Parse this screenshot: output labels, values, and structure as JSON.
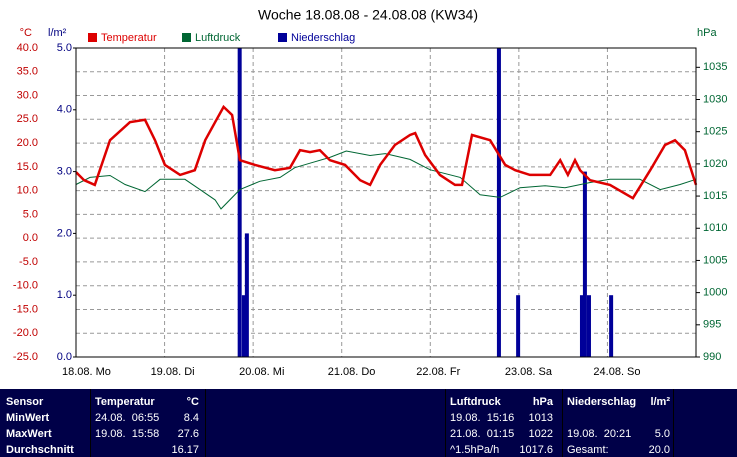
{
  "chart_data": {
    "type": "line",
    "title": "Woche 18.08.08 - 24.08.08 (KW34)",
    "y_unit": "°C",
    "y3_unit": "l/m²",
    "y2_unit": "hPa",
    "xlim": [
      0,
      168
    ],
    "xticks": [
      {
        "value": 0,
        "label": "18.08.  Mo"
      },
      {
        "value": 24,
        "label": "19.08.  Di"
      },
      {
        "value": 48,
        "label": "20.08.  Mi"
      },
      {
        "value": 72,
        "label": "21.08.  Do"
      },
      {
        "value": 96,
        "label": "22.08.  Fr"
      },
      {
        "value": 120,
        "label": "23.08.  Sa"
      },
      {
        "value": 144,
        "label": "24.08.  So"
      }
    ],
    "ylim": [
      -25,
      40
    ],
    "yticks": [
      {
        "value": 40,
        "label": "40.0"
      },
      {
        "value": 35,
        "label": "35.0"
      },
      {
        "value": 30,
        "label": "30.0"
      },
      {
        "value": 25,
        "label": "25.0"
      },
      {
        "value": 20,
        "label": "20.0"
      },
      {
        "value": 15,
        "label": "15.0"
      },
      {
        "value": 10,
        "label": "10.0"
      },
      {
        "value": 5,
        "label": "5.0"
      },
      {
        "value": 0,
        "label": "0.0"
      },
      {
        "value": -5,
        "label": "-5.0"
      },
      {
        "value": -10,
        "label": "-10.0"
      },
      {
        "value": -15,
        "label": "-15.0"
      },
      {
        "value": -20,
        "label": "-20.0"
      },
      {
        "value": -25,
        "label": "-25.0"
      }
    ],
    "y2lim": [
      990,
      1038
    ],
    "y2ticks": [
      990,
      995,
      1000,
      1005,
      1010,
      1015,
      1020,
      1025,
      1030,
      1035
    ],
    "y3lim": [
      0,
      5
    ],
    "y3ticks": [
      {
        "value": 0,
        "label": "0.0"
      },
      {
        "value": 1,
        "label": "1.0"
      },
      {
        "value": 2,
        "label": "2.0"
      },
      {
        "value": 3,
        "label": "3.0"
      },
      {
        "value": 4,
        "label": "4.0"
      },
      {
        "value": 5,
        "label": "5.0"
      }
    ],
    "grid": true,
    "series": [
      {
        "name": "Temperatur",
        "color": "#dd0000",
        "axis": "y",
        "type": "line",
        "x": [
          0,
          2.2,
          5.1,
          9.2,
          14.6,
          18.7,
          21.4,
          24.1,
          28.2,
          32.2,
          35,
          37.7,
          40,
          42.3,
          44.4,
          48.5,
          53.9,
          58,
          60.7,
          63.4,
          66.1,
          68.8,
          72.9,
          77,
          79.7,
          82.4,
          86.4,
          90.5,
          91.9,
          94.6,
          98.6,
          102.7,
          104.6,
          107.3,
          112.2,
          116.3,
          119,
          123,
          128.5,
          131.2,
          133.3,
          135.2,
          136.6,
          139.3,
          144.7,
          150.9,
          155.6,
          159.6,
          162.3,
          165,
          168
        ],
        "values": [
          13.9,
          12.2,
          11.2,
          20.6,
          24.4,
          24.9,
          20.6,
          15.4,
          13.3,
          14.3,
          20.6,
          24.4,
          27.6,
          25.9,
          16.4,
          15.4,
          14.3,
          14.8,
          18.5,
          18.1,
          18.5,
          16.4,
          15.4,
          12.2,
          11.2,
          15.4,
          19.6,
          21.7,
          22.1,
          17.5,
          13.3,
          11.2,
          11.2,
          21.7,
          20.6,
          15.4,
          14.3,
          13.3,
          13.3,
          16.4,
          13.3,
          16.4,
          14.3,
          12.2,
          11.2,
          8.4,
          14.3,
          19.6,
          20.6,
          18.5,
          11.2
        ]
      },
      {
        "name": "Luftdruck",
        "color": "#006633",
        "axis": "y2",
        "type": "line",
        "x": [
          0,
          3.8,
          9.2,
          13.3,
          18.7,
          22.8,
          29.5,
          33.6,
          37.7,
          39.3,
          44.4,
          49.8,
          55.3,
          59.3,
          63.4,
          68.8,
          73.25,
          79.7,
          83.8,
          90.5,
          95.9,
          104.1,
          109.5,
          114.9,
          120.3,
          127.1,
          132.5,
          139.3,
          144.7,
          152.8,
          158.3,
          163.7,
          168
        ],
        "values": [
          1016.8,
          1017.9,
          1018.2,
          1016.8,
          1015.7,
          1017.6,
          1017.6,
          1016,
          1014.4,
          1013,
          1016,
          1017.3,
          1017.9,
          1019.4,
          1020.1,
          1021,
          1022,
          1021.3,
          1021.6,
          1020.7,
          1019.1,
          1017.9,
          1015.2,
          1014.8,
          1016.3,
          1016.6,
          1016.3,
          1017.1,
          1017.6,
          1017.6,
          1016,
          1016.8,
          1017.6
        ]
      },
      {
        "name": "Niederschlag",
        "color": "#000099",
        "axis": "y3",
        "type": "bar",
        "x": [
          44.35,
          45.5,
          46.3,
          114.6,
          119.8,
          137.1,
          137.9,
          139,
          145
        ],
        "values": [
          5.0,
          1.0,
          2.0,
          5.0,
          1.0,
          1.0,
          3.0,
          1.0,
          1.0
        ]
      }
    ]
  },
  "table": {
    "header": {
      "sensor": "Sensor",
      "temp": "Temperatur",
      "temp_unit": "°C",
      "pressure": "Luftdruck",
      "pressure_unit": "hPa",
      "rain": "Niederschlag",
      "rain_unit": "l/m²"
    },
    "rows": [
      {
        "label": "MinWert",
        "temp_time": "24.08.  06:55",
        "temp": "8.4",
        "pressure_time": "19.08.  15:16",
        "pressure": "1013"
      },
      {
        "label": "MaxWert",
        "temp_time": "19.08.  15:58",
        "temp": "27.6",
        "pressure_time": "21.08.  01:15",
        "pressure": "1022",
        "rain_time": "19.08.  20:21",
        "rain": "5.0"
      },
      {
        "label": "Durchschnitt",
        "temp": "16.17",
        "pressure_time": "^1.5hPa/h",
        "pressure": "1017.6",
        "rain_time": "Gesamt:",
        "rain": "20.0"
      }
    ]
  }
}
